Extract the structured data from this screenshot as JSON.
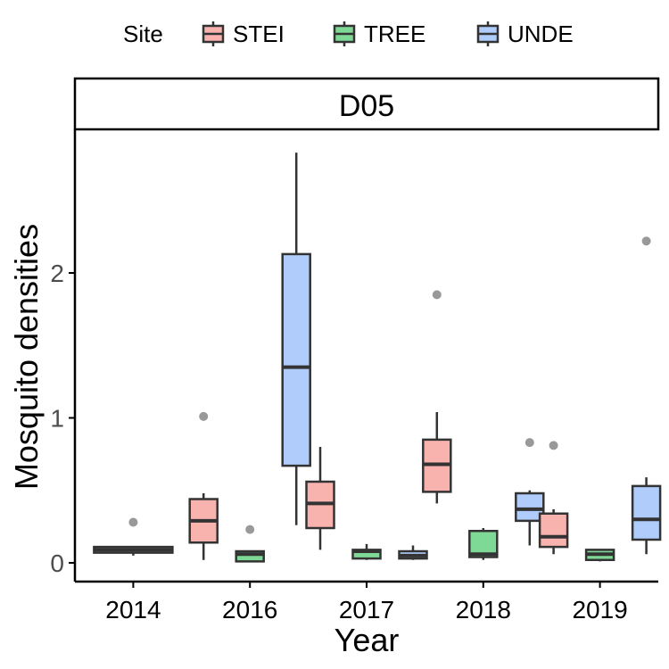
{
  "chart_data": {
    "type": "boxplot",
    "facet_label": "D05",
    "xlabel": "Year",
    "ylabel": "Mosquito densities",
    "legend": {
      "title": "Site",
      "position": "top",
      "entries": [
        {
          "name": "STEI",
          "fill": "#F8B3AE"
        },
        {
          "name": "TREE",
          "fill": "#7FD996"
        },
        {
          "name": "UNDE",
          "fill": "#AFCCFA"
        }
      ]
    },
    "categories": [
      "2014",
      "2016",
      "2017",
      "2018",
      "2019"
    ],
    "y_ticks": [
      0,
      1,
      2
    ],
    "ylim": [
      -0.12,
      2.9
    ],
    "grid": false,
    "colors": {
      "box_stroke": "#333333",
      "outlier": "#999999",
      "axis": "#000000"
    },
    "boxes": [
      {
        "year": "2014",
        "site": "UNDE",
        "min": 0.05,
        "q1": 0.07,
        "median": 0.09,
        "q3": 0.11,
        "max": 0.11,
        "outliers": [
          0.28
        ]
      },
      {
        "year": "2016",
        "site": "STEI",
        "min": 0.02,
        "q1": 0.14,
        "median": 0.29,
        "q3": 0.44,
        "max": 0.48,
        "outliers": [
          1.01
        ]
      },
      {
        "year": "2016",
        "site": "TREE",
        "min": 0.01,
        "q1": 0.01,
        "median": 0.06,
        "q3": 0.08,
        "max": 0.08,
        "outliers": [
          0.23
        ]
      },
      {
        "year": "2016",
        "site": "UNDE",
        "min": 0.26,
        "q1": 0.67,
        "median": 1.35,
        "q3": 2.13,
        "max": 2.83,
        "outliers": []
      },
      {
        "year": "2017",
        "site": "STEI",
        "min": 0.09,
        "q1": 0.24,
        "median": 0.41,
        "q3": 0.56,
        "max": 0.8,
        "outliers": []
      },
      {
        "year": "2017",
        "site": "TREE",
        "min": 0.02,
        "q1": 0.03,
        "median": 0.08,
        "q3": 0.09,
        "max": 0.13,
        "outliers": []
      },
      {
        "year": "2017",
        "site": "UNDE",
        "min": 0.02,
        "q1": 0.03,
        "median": 0.05,
        "q3": 0.08,
        "max": 0.12,
        "outliers": []
      },
      {
        "year": "2018",
        "site": "STEI",
        "min": 0.41,
        "q1": 0.49,
        "median": 0.68,
        "q3": 0.85,
        "max": 1.04,
        "outliers": [
          1.85
        ]
      },
      {
        "year": "2018",
        "site": "TREE",
        "min": 0.02,
        "q1": 0.04,
        "median": 0.06,
        "q3": 0.22,
        "max": 0.24,
        "outliers": []
      },
      {
        "year": "2018",
        "site": "UNDE",
        "min": 0.12,
        "q1": 0.29,
        "median": 0.37,
        "q3": 0.48,
        "max": 0.5,
        "outliers": [
          0.83
        ]
      },
      {
        "year": "2019",
        "site": "STEI",
        "min": 0.06,
        "q1": 0.11,
        "median": 0.18,
        "q3": 0.34,
        "max": 0.37,
        "outliers": [
          0.81
        ]
      },
      {
        "year": "2019",
        "site": "TREE",
        "min": 0.01,
        "q1": 0.02,
        "median": 0.06,
        "q3": 0.09,
        "max": 0.09,
        "outliers": []
      },
      {
        "year": "2019",
        "site": "UNDE",
        "min": 0.06,
        "q1": 0.16,
        "median": 0.3,
        "q3": 0.53,
        "max": 0.59,
        "outliers": [
          2.22
        ]
      }
    ]
  }
}
